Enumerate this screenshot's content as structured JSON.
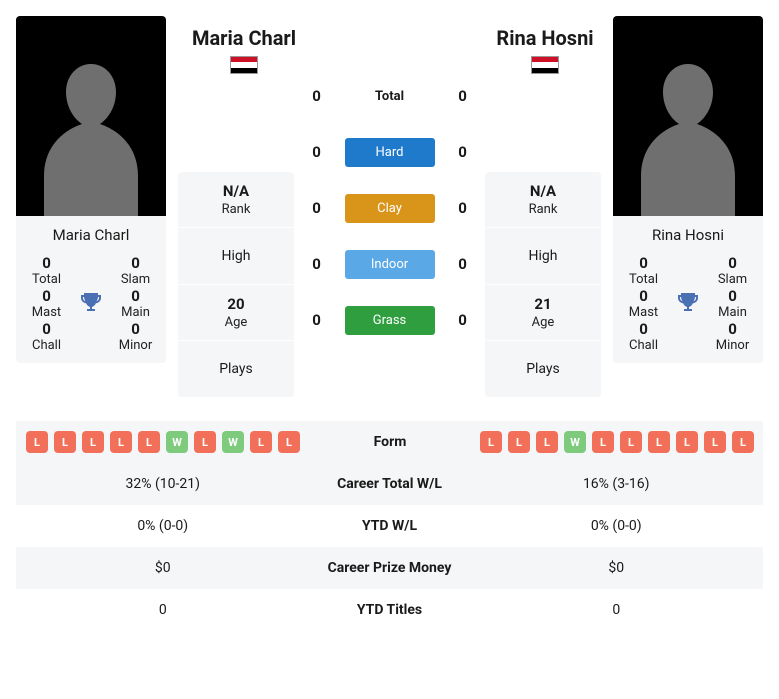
{
  "colors": {
    "card_bg": "#f5f6f7",
    "photo_bg": "#000000",
    "silhouette": "#6f6f6f",
    "trophy": "#4a6fb3",
    "chip_win": "#7ecb7e",
    "chip_loss": "#f27059",
    "surface_hard": "#1f7acc",
    "surface_clay": "#d9941a",
    "surface_indoor": "#5aa9e6",
    "surface_grass": "#2e9e3f"
  },
  "flag": {
    "stripe_top": "#ce1126",
    "stripe_mid": "#ffffff",
    "stripe_bot": "#000000"
  },
  "player_a": {
    "name": "Maria Charl",
    "titles": {
      "total": "0",
      "slam": "0",
      "mast": "0",
      "main": "0",
      "chall": "0",
      "minor": "0"
    },
    "info": {
      "rank": "N/A",
      "high": "",
      "age": "20",
      "plays": ""
    }
  },
  "player_b": {
    "name": "Rina Hosni",
    "titles": {
      "total": "0",
      "slam": "0",
      "mast": "0",
      "main": "0",
      "chall": "0",
      "minor": "0"
    },
    "info": {
      "rank": "N/A",
      "high": "",
      "age": "21",
      "plays": ""
    }
  },
  "title_labels": {
    "total": "Total",
    "slam": "Slam",
    "mast": "Mast",
    "main": "Main",
    "chall": "Chall",
    "minor": "Minor"
  },
  "info_labels": {
    "rank": "Rank",
    "high": "High",
    "age": "Age",
    "plays": "Plays"
  },
  "h2h": {
    "total_label": "Total",
    "rows": [
      {
        "label": "Hard",
        "a": "0",
        "b": "0",
        "color": "#1f7acc"
      },
      {
        "label": "Clay",
        "a": "0",
        "b": "0",
        "color": "#d9941a"
      },
      {
        "label": "Indoor",
        "a": "0",
        "b": "0",
        "color": "#5aa9e6"
      },
      {
        "label": "Grass",
        "a": "0",
        "b": "0",
        "color": "#2e9e3f"
      }
    ],
    "total": {
      "a": "0",
      "b": "0"
    }
  },
  "form": {
    "a": [
      "L",
      "L",
      "L",
      "L",
      "L",
      "W",
      "L",
      "W",
      "L",
      "L"
    ],
    "b": [
      "L",
      "L",
      "L",
      "W",
      "L",
      "L",
      "L",
      "L",
      "L",
      "L"
    ],
    "label": "Form"
  },
  "stats": [
    {
      "key": "career_wl",
      "label": "Career Total W/L",
      "a": "32% (10-21)",
      "b": "16% (3-16)"
    },
    {
      "key": "ytd_wl",
      "label": "YTD W/L",
      "a": "0% (0-0)",
      "b": "0% (0-0)"
    },
    {
      "key": "prize",
      "label": "Career Prize Money",
      "a": "$0",
      "b": "$0"
    },
    {
      "key": "ytd_titles",
      "label": "YTD Titles",
      "a": "0",
      "b": "0"
    }
  ]
}
